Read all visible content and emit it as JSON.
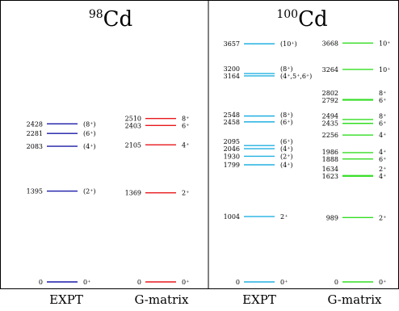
{
  "chart_data": {
    "type": "level-scheme",
    "ylim": [
      0,
      3800
    ],
    "panels": [
      {
        "id": "cd98",
        "title_mass": "98",
        "title_symbol": "Cd",
        "columns": [
          {
            "label": "EXPT",
            "color": "#1a1aa8",
            "levels": [
              {
                "energy": 0,
                "label": "0",
                "spin": "0⁺"
              },
              {
                "energy": 1395,
                "label": "1395",
                "spin": "(2⁺)"
              },
              {
                "energy": 2083,
                "label": "2083",
                "spin": "(4⁺)"
              },
              {
                "energy": 2281,
                "label": "2281",
                "spin": "(6⁺)"
              },
              {
                "energy": 2428,
                "label": "2428",
                "spin": "(8⁺)"
              }
            ]
          },
          {
            "label": "G-matrix",
            "color": "#e8191c",
            "levels": [
              {
                "energy": 0,
                "label": "0",
                "spin": "0⁺"
              },
              {
                "energy": 1369,
                "label": "1369",
                "spin": "2⁺"
              },
              {
                "energy": 2105,
                "label": "2105",
                "spin": "4⁺"
              },
              {
                "energy": 2403,
                "label": "2403",
                "spin": "6⁺"
              },
              {
                "energy": 2510,
                "label": "2510",
                "spin": "8⁺"
              }
            ]
          }
        ]
      },
      {
        "id": "cd100",
        "title_mass": "100",
        "title_symbol": "Cd",
        "columns": [
          {
            "label": "EXPT",
            "color": "#22b0e0",
            "levels": [
              {
                "energy": 0,
                "label": "0",
                "spin": "0⁺"
              },
              {
                "energy": 1004,
                "label": "1004",
                "spin": "2⁺"
              },
              {
                "energy": 1799,
                "label": "1799",
                "spin": "(4⁺)"
              },
              {
                "energy": 1930,
                "label": "1930",
                "spin": "(2⁺)"
              },
              {
                "energy": 2046,
                "label": "2046",
                "spin": "(4⁺)"
              },
              {
                "energy": 2095,
                "label": "2095",
                "spin": "(6⁺)"
              },
              {
                "energy": 2458,
                "label": "2458",
                "spin": "(6⁺)"
              },
              {
                "energy": 2548,
                "label": "2548",
                "spin": "(8⁺)"
              },
              {
                "energy": 3164,
                "label": "3164",
                "spin": "(4⁺,5⁺,6⁺)"
              },
              {
                "energy": 3200,
                "label": "3200",
                "spin": "(8⁺)"
              },
              {
                "energy": 3657,
                "label": "3657",
                "spin": "(10⁺)"
              }
            ]
          },
          {
            "label": "G-matrix",
            "color": "#33dd22",
            "levels": [
              {
                "energy": 0,
                "label": "0",
                "spin": "0⁺"
              },
              {
                "energy": 989,
                "label": "989",
                "spin": "2⁺"
              },
              {
                "energy": 1623,
                "label": "1623",
                "spin": "4⁺"
              },
              {
                "energy": 1634,
                "label": "1634",
                "spin": "2⁺"
              },
              {
                "energy": 1888,
                "label": "1888",
                "spin": "6⁺"
              },
              {
                "energy": 1986,
                "label": "1986",
                "spin": "4⁺"
              },
              {
                "energy": 2256,
                "label": "2256",
                "spin": "4⁺"
              },
              {
                "energy": 2435,
                "label": "2435",
                "spin": "6⁺"
              },
              {
                "energy": 2494,
                "label": "2494",
                "spin": "8⁺"
              },
              {
                "energy": 2792,
                "label": "2792",
                "spin": "6⁺"
              },
              {
                "energy": 2802,
                "label": "2802",
                "spin": "8⁺"
              },
              {
                "energy": 3264,
                "label": "3264",
                "spin": "10⁺"
              },
              {
                "energy": 3668,
                "label": "3668",
                "spin": "10⁺"
              }
            ]
          }
        ]
      }
    ]
  }
}
